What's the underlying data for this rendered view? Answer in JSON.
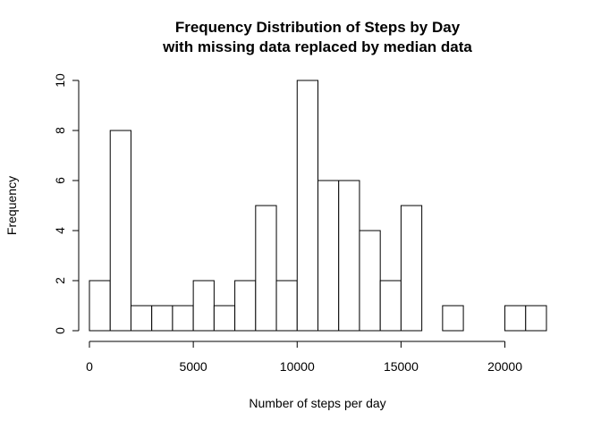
{
  "chart_data": {
    "type": "bar",
    "title_line1": "Frequency Distribution of Steps by Day",
    "title_line2": "with missing data replaced by median data",
    "xlabel": "Number of steps per day",
    "ylabel": "Frequency",
    "bin_width": 1000,
    "bins": [
      {
        "start": 0,
        "end": 1000,
        "count": 2
      },
      {
        "start": 1000,
        "end": 2000,
        "count": 8
      },
      {
        "start": 2000,
        "end": 3000,
        "count": 1
      },
      {
        "start": 3000,
        "end": 4000,
        "count": 1
      },
      {
        "start": 4000,
        "end": 5000,
        "count": 1
      },
      {
        "start": 5000,
        "end": 6000,
        "count": 2
      },
      {
        "start": 6000,
        "end": 7000,
        "count": 1
      },
      {
        "start": 7000,
        "end": 8000,
        "count": 2
      },
      {
        "start": 8000,
        "end": 9000,
        "count": 5
      },
      {
        "start": 9000,
        "end": 10000,
        "count": 2
      },
      {
        "start": 10000,
        "end": 11000,
        "count": 10
      },
      {
        "start": 11000,
        "end": 12000,
        "count": 6
      },
      {
        "start": 12000,
        "end": 13000,
        "count": 6
      },
      {
        "start": 13000,
        "end": 14000,
        "count": 4
      },
      {
        "start": 14000,
        "end": 15000,
        "count": 2
      },
      {
        "start": 15000,
        "end": 16000,
        "count": 5
      },
      {
        "start": 16000,
        "end": 17000,
        "count": 0
      },
      {
        "start": 17000,
        "end": 18000,
        "count": 1
      },
      {
        "start": 18000,
        "end": 19000,
        "count": 0
      },
      {
        "start": 19000,
        "end": 20000,
        "count": 0
      },
      {
        "start": 20000,
        "end": 21000,
        "count": 1
      },
      {
        "start": 21000,
        "end": 22000,
        "count": 1
      }
    ],
    "xlim": [
      0,
      22000
    ],
    "ylim": [
      0,
      10
    ],
    "x_ticks": [
      0,
      5000,
      10000,
      15000,
      20000
    ],
    "y_ticks": [
      0,
      2,
      4,
      6,
      8,
      10
    ],
    "grid": false,
    "legend": "none",
    "bar_fill": "#ffffff",
    "bar_stroke": "#000000"
  }
}
